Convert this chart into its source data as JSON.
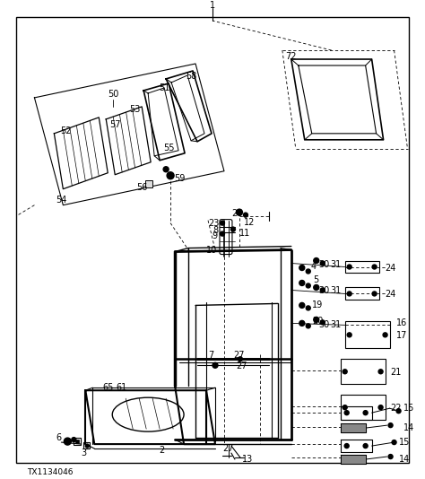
{
  "bg_color": "#ffffff",
  "line_color": "#000000",
  "text_color": "#000000",
  "fig_width": 4.74,
  "fig_height": 5.34,
  "dpi": 100,
  "watermark": "TX1134046"
}
